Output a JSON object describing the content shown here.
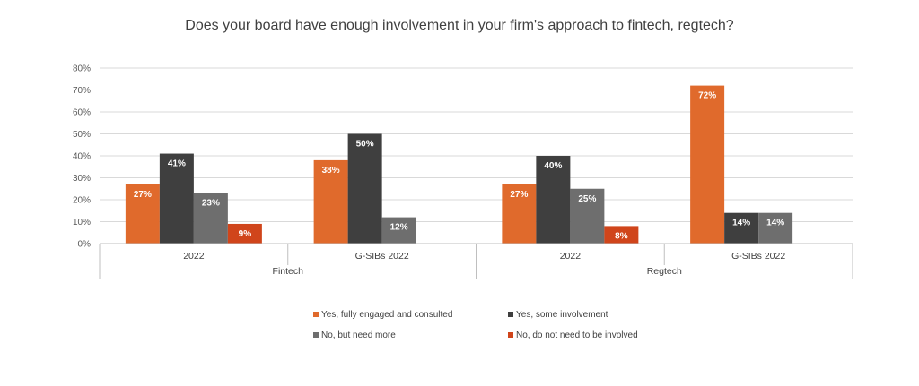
{
  "chart_data": {
    "type": "bar",
    "title": "Does your board have enough involvement in your firm's approach to fintech, regtech?",
    "ylim": [
      0,
      80
    ],
    "yticks": [
      "0%",
      "10%",
      "20%",
      "30%",
      "40%",
      "50%",
      "60%",
      "70%",
      "80%"
    ],
    "grid": true,
    "legend_position": "bottom",
    "groups": [
      {
        "name": "Fintech",
        "categories": [
          "2022",
          "G-SIBs 2022"
        ]
      },
      {
        "name": "Regtech",
        "categories": [
          "2022",
          "G-SIBs 2022"
        ]
      }
    ],
    "categories": [
      "2022",
      "G-SIBs 2022",
      "2022",
      "G-SIBs 2022"
    ],
    "series": [
      {
        "name": "Yes, fully engaged and consulted",
        "color": "#E06A2C",
        "values": [
          27,
          38,
          27,
          72
        ],
        "labels": [
          "27%",
          "38%",
          "27%",
          "72%"
        ]
      },
      {
        "name": "Yes, some involvement",
        "color": "#3F3F3F",
        "values": [
          41,
          50,
          40,
          14
        ],
        "labels": [
          "41%",
          "50%",
          "40%",
          "14%"
        ]
      },
      {
        "name": "No, but need more",
        "color": "#6E6E6E",
        "values": [
          23,
          12,
          25,
          14
        ],
        "labels": [
          "23%",
          "12%",
          "25%",
          "14%"
        ]
      },
      {
        "name": "No, do not need to be involved",
        "color": "#D0451B",
        "values": [
          9,
          null,
          8,
          null
        ],
        "labels": [
          "9%",
          "",
          "8%",
          ""
        ]
      }
    ]
  }
}
